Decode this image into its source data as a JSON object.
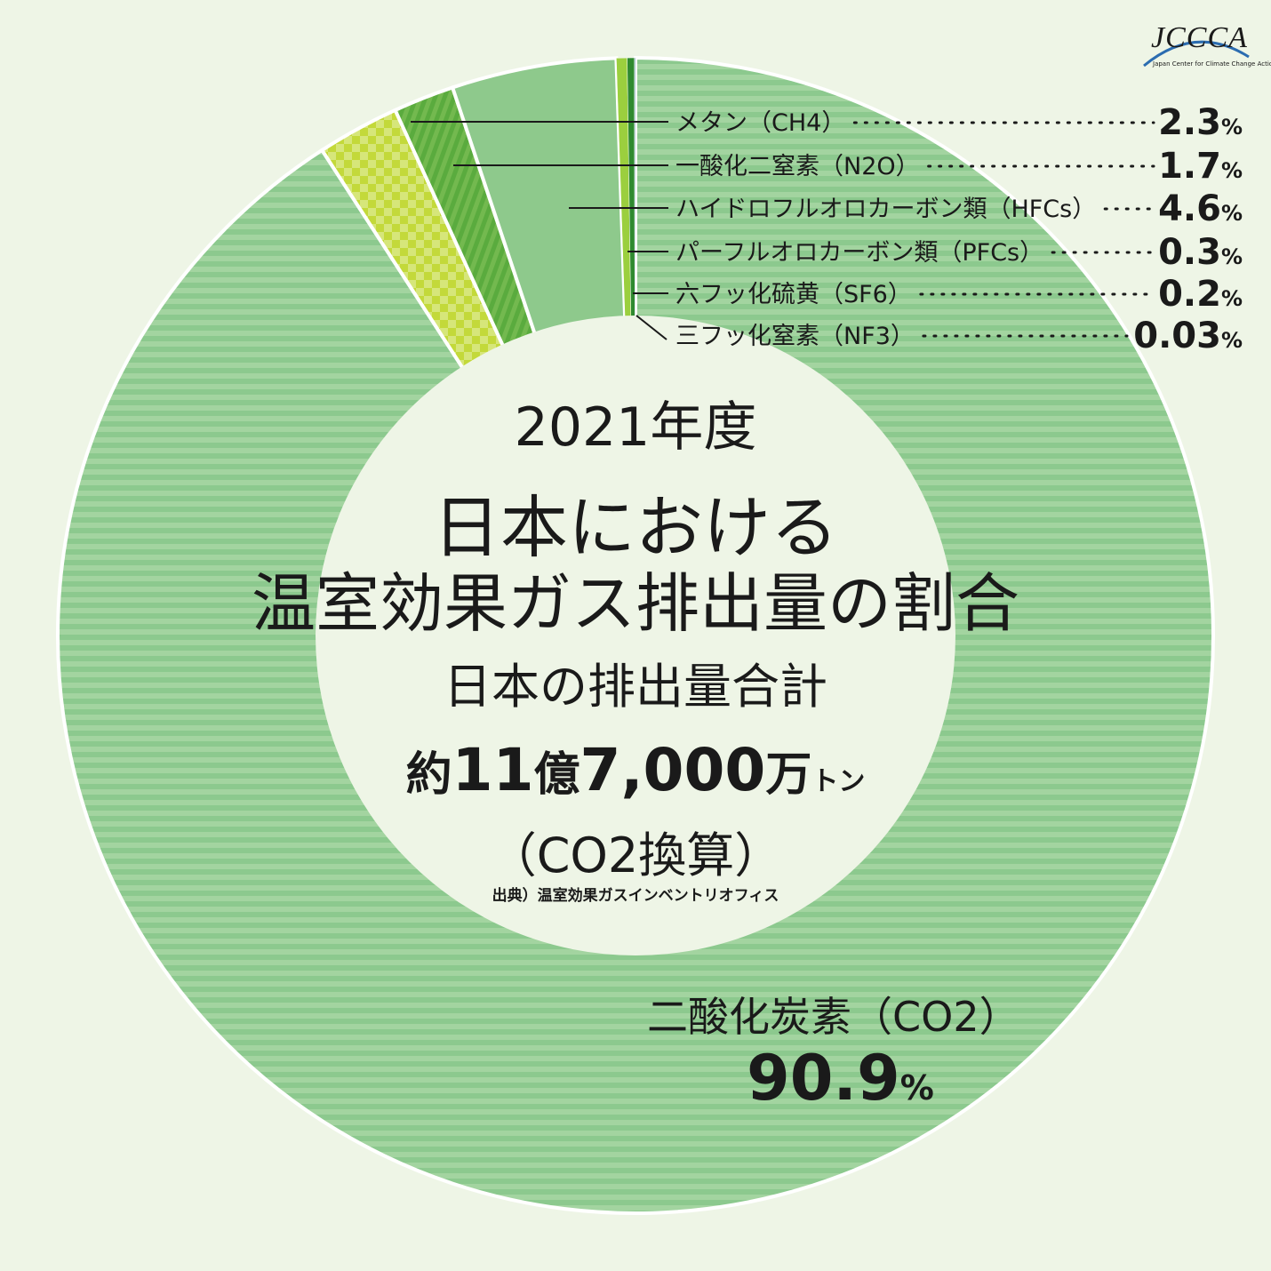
{
  "logo": {
    "text": "JCCCA",
    "subtitle": "Japan Center for Climate Change Actions"
  },
  "title": {
    "year": "2021年度",
    "line1": "日本における",
    "line2": "温室効果ガス排出量の割合",
    "sub": "日本の排出量合計",
    "total_prefix": "約",
    "total_a": "11",
    "total_b": "億",
    "total_c": "7,000",
    "total_d": "万",
    "total_e": "トン",
    "unit": "（CO2換算）",
    "source": "出典）温室効果ガスインベントリオフィス"
  },
  "chart_data": {
    "type": "pie",
    "title": "2021年度 日本における温室効果ガス排出量の割合",
    "total": "約11億7,000万トン（CO2換算）",
    "slices": [
      {
        "label": "二酸化炭素（CO2）",
        "value": 90.9,
        "display": "90.9",
        "color": "#8cc98e"
      },
      {
        "label": "メタン（CH4）",
        "value": 2.3,
        "display": "2.3",
        "color": "#c3d93a"
      },
      {
        "label": "一酸化二窒素（N2O）",
        "value": 1.7,
        "display": "1.7",
        "color": "#5aab3e"
      },
      {
        "label": "ハイドロフルオロカーボン類（HFCs）",
        "value": 4.6,
        "display": "4.6",
        "color": "#8ec98c"
      },
      {
        "label": "パーフルオロカーボン類（PFCs）",
        "value": 0.3,
        "display": "0.3",
        "color": "#9bcf3e"
      },
      {
        "label": "六フッ化硫黄（SF6）",
        "value": 0.2,
        "display": "0.2",
        "color": "#2f8a2f"
      },
      {
        "label": "三フッ化窒素（NF3）",
        "value": 0.03,
        "display": "0.03",
        "color": "#8aaec0"
      }
    ],
    "percent_symbol": "%"
  },
  "colors": {
    "background": "#eef5e6",
    "inner": "#eef5e6",
    "co2_stripe": "#a3d4a0",
    "ch4_check": "#d6e67a",
    "n2o_stripe": "#73b94f"
  }
}
